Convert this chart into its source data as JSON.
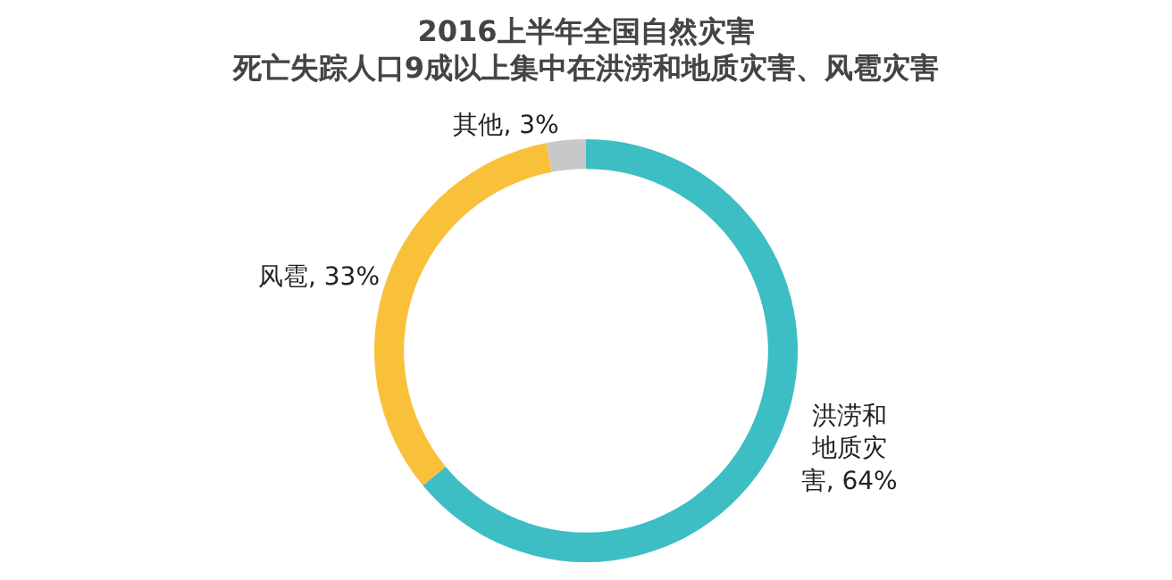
{
  "chart_data": {
    "type": "donut",
    "title": "2016上半年全国自然灾害",
    "subtitle": "死亡失踪人口9成以上集中在洪涝和地质灾害、风雹灾害",
    "categories": [
      "洪涝和地质灾害",
      "风雹",
      "其他"
    ],
    "values": [
      64,
      33,
      3
    ],
    "value_labels": [
      "64%",
      "33%",
      "3%"
    ],
    "colors": [
      "#3dbdc4",
      "#f9c03a",
      "#c8c8c8"
    ],
    "legend": false
  }
}
